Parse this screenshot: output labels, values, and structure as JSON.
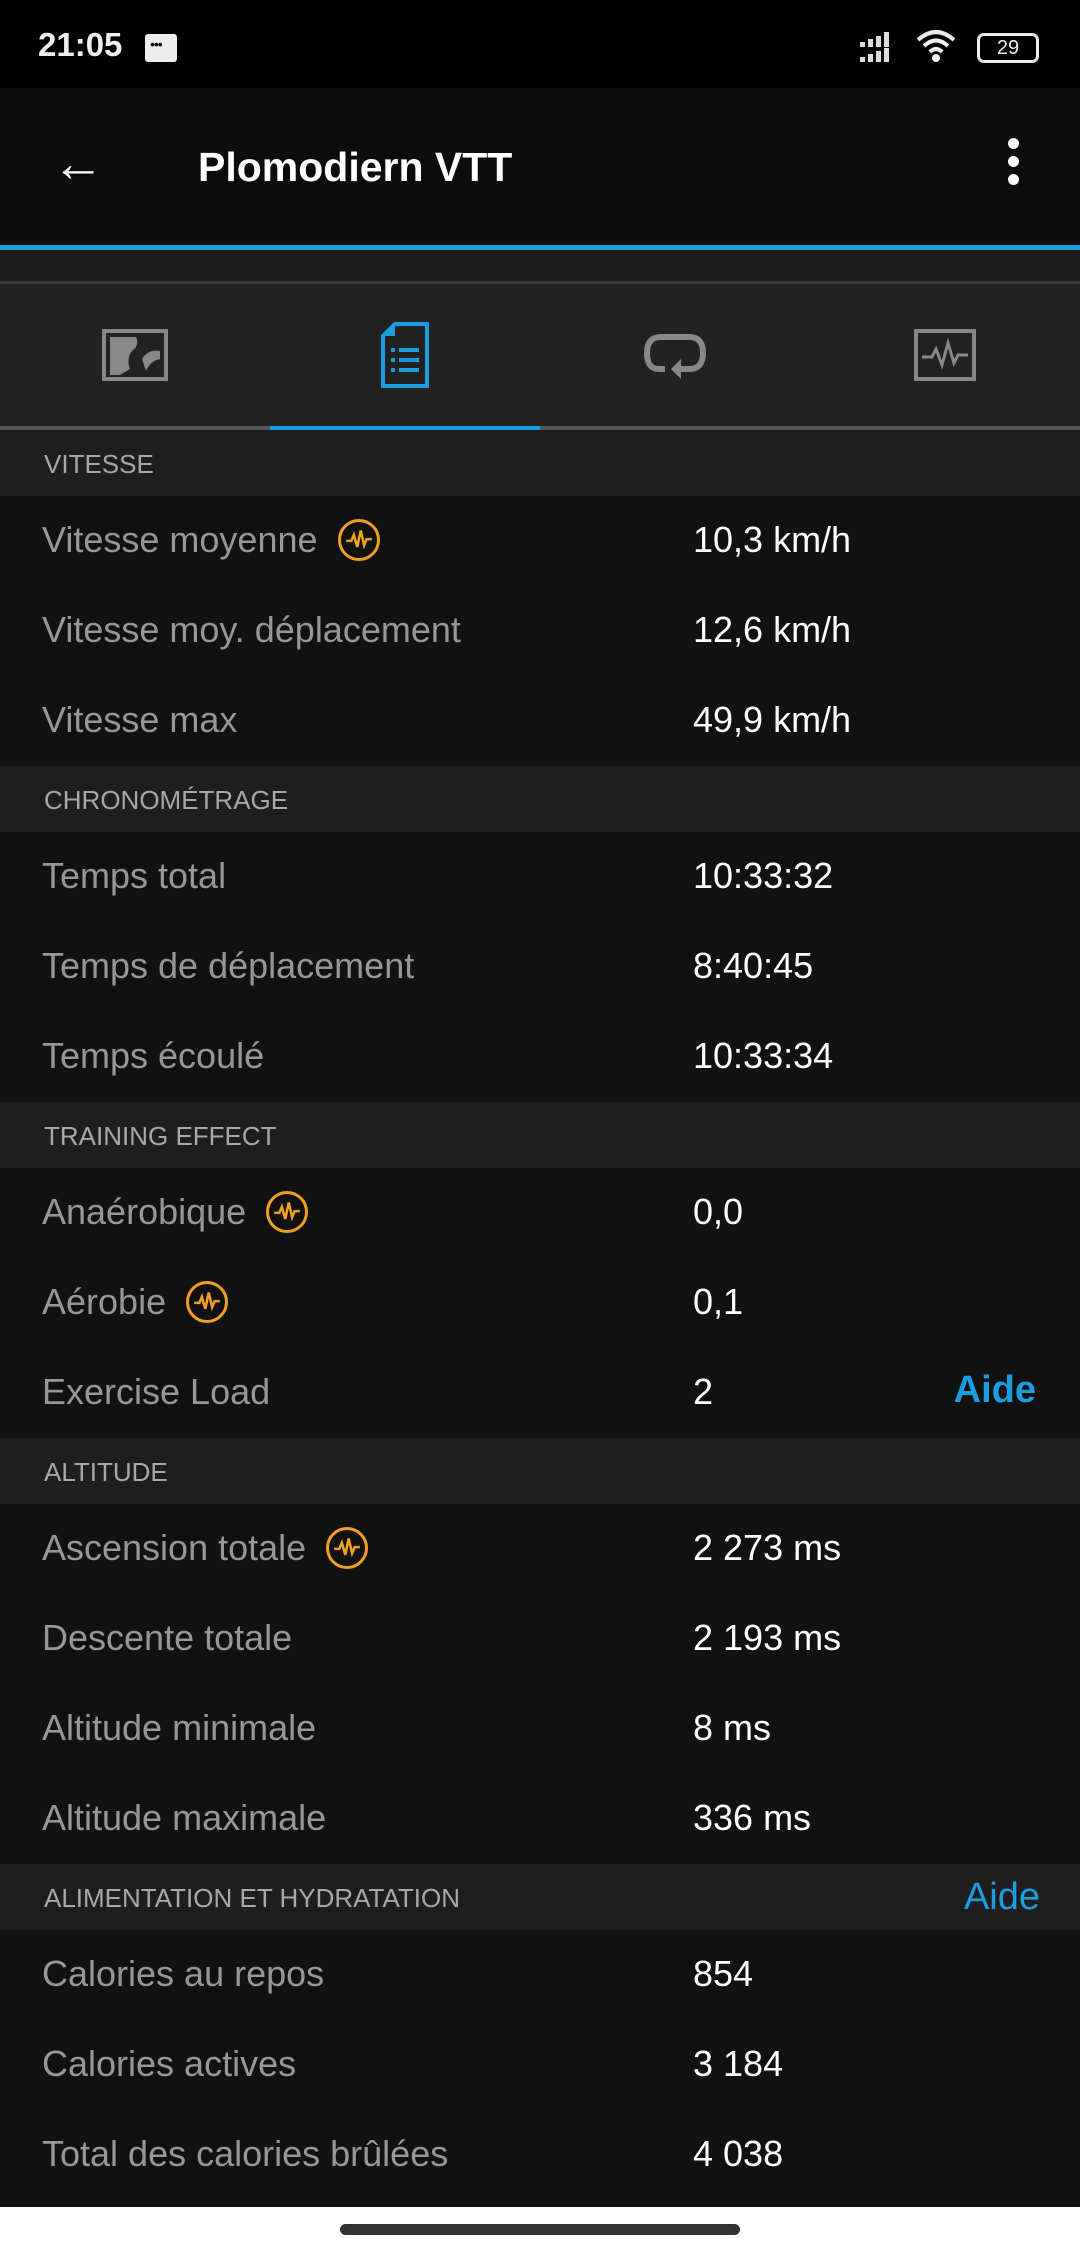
{
  "status": {
    "time": "21:05",
    "battery": "29"
  },
  "header": {
    "title": "Plomodiern VTT"
  },
  "tabs": [
    {
      "icon": "map-icon"
    },
    {
      "icon": "details-icon",
      "active": true
    },
    {
      "icon": "laps-icon"
    },
    {
      "icon": "chart-icon"
    }
  ],
  "accent": "#1a9ee0",
  "te_color": "#f0a020",
  "sections": [
    {
      "title": "VITESSE",
      "rows": [
        {
          "label": "Vitesse moyenne",
          "value": "10,3 km/h",
          "te": true
        },
        {
          "label": "Vitesse moy. déplacement",
          "value": "12,6 km/h"
        },
        {
          "label": "Vitesse max",
          "value": "49,9 km/h"
        }
      ]
    },
    {
      "title": "CHRONOMÉTRAGE",
      "rows": [
        {
          "label": "Temps total",
          "value": "10:33:32"
        },
        {
          "label": "Temps de déplacement",
          "value": "8:40:45"
        },
        {
          "label": "Temps écoulé",
          "value": "10:33:34"
        }
      ]
    },
    {
      "title": "TRAINING EFFECT",
      "rows": [
        {
          "label": "Anaérobique",
          "value": "0,0",
          "te": true
        },
        {
          "label": "Aérobie",
          "value": "0,1",
          "te": true
        },
        {
          "label": "Exercise Load",
          "value": "2",
          "link": "Aide"
        }
      ]
    },
    {
      "title": "ALTITUDE",
      "rows": [
        {
          "label": "Ascension totale",
          "value": "2 273 ms",
          "te": true
        },
        {
          "label": "Descente totale",
          "value": "2 193 ms"
        },
        {
          "label": "Altitude minimale",
          "value": "8 ms"
        },
        {
          "label": "Altitude maximale",
          "value": "336 ms"
        }
      ]
    },
    {
      "title": "ALIMENTATION ET HYDRATATION",
      "link": "Aide",
      "rows": [
        {
          "label": "Calories au repos",
          "value": "854"
        },
        {
          "label": "Calories actives",
          "value": "3 184"
        },
        {
          "label": "Total des calories brûlées",
          "value": "4 038"
        }
      ]
    }
  ]
}
